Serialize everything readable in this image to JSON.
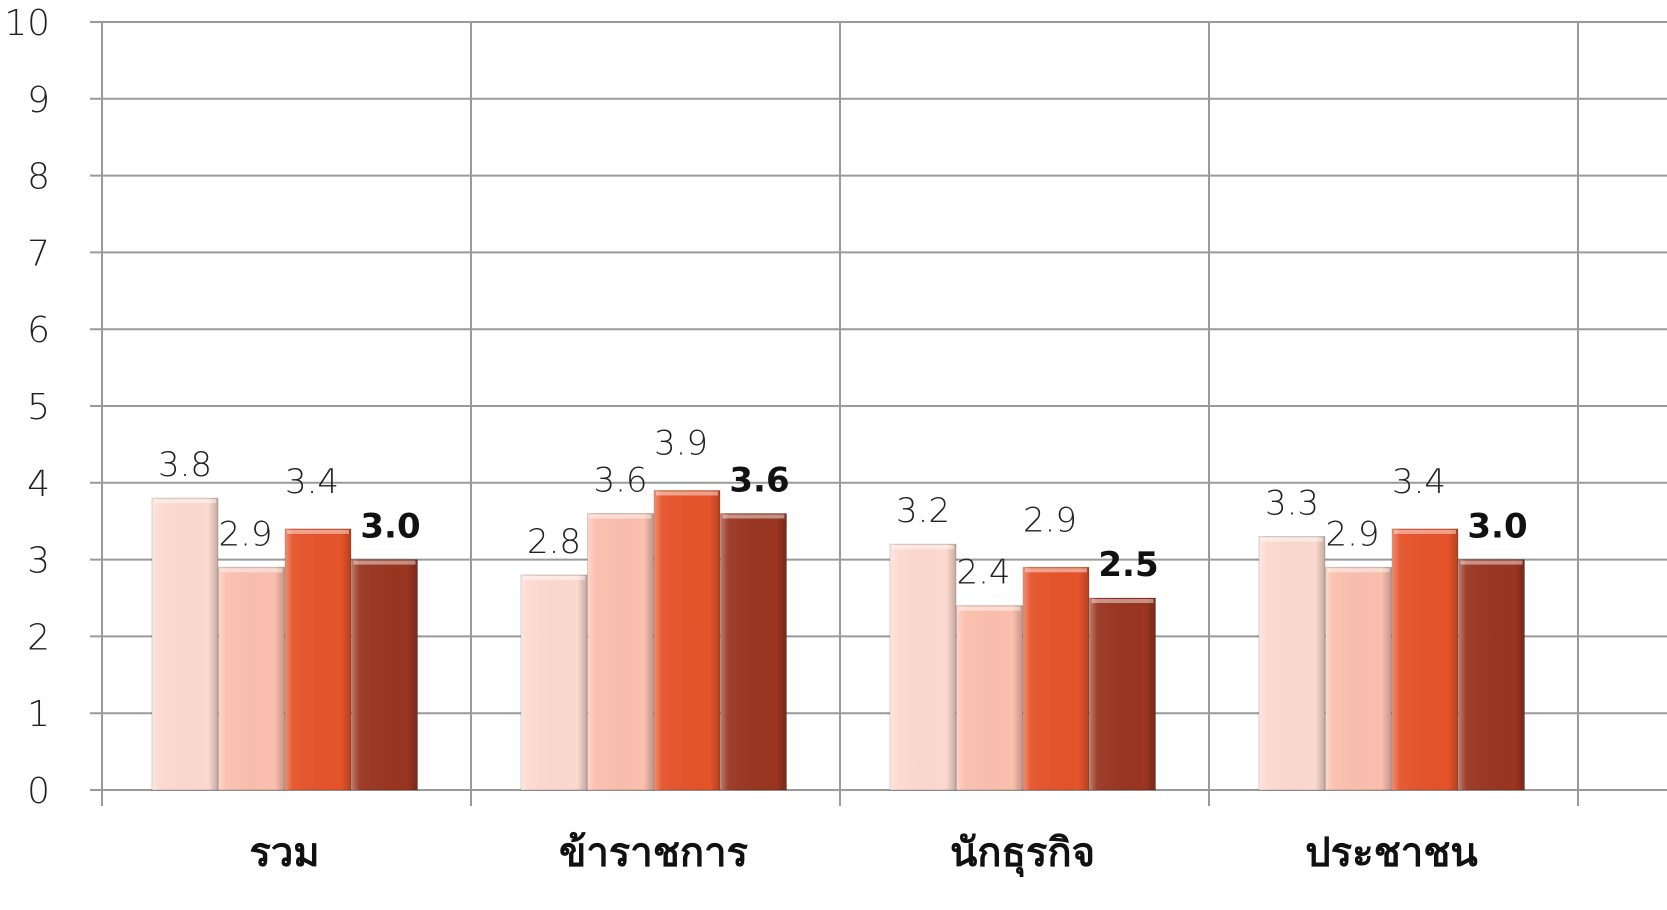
{
  "chart_data": {
    "type": "bar",
    "title": "",
    "xlabel": "",
    "ylabel": "",
    "ylim": [
      0,
      10
    ],
    "yticks": [
      "0",
      "1",
      "2",
      "3",
      "4",
      "5",
      "6",
      "7",
      "8",
      "9",
      "10"
    ],
    "grid": true,
    "legend": "none",
    "categories": [
      "รวม",
      "ข้าราชการ",
      "นักธุรกิจ",
      "ประชาชน"
    ],
    "series": [
      {
        "color": "#fcd9cf",
        "values": [
          3.8,
          2.8,
          3.2,
          3.3
        ],
        "labels": [
          "3.8",
          "2.8",
          "3.2",
          "3.3"
        ],
        "bold_labels": false
      },
      {
        "color": "#fbbfae",
        "values": [
          2.9,
          3.6,
          2.4,
          2.9
        ],
        "labels": [
          "2.9",
          "3.6",
          "2.4",
          "2.9"
        ],
        "bold_labels": false
      },
      {
        "color": "#e5532a",
        "values": [
          3.4,
          3.9,
          2.9,
          3.4
        ],
        "labels": [
          "3.4",
          "3.9",
          "2.9",
          "3.4"
        ],
        "bold_labels": false
      },
      {
        "color": "#993521",
        "values": [
          3.0,
          3.6,
          2.5,
          3.0
        ],
        "labels": [
          "3.0",
          "3.6",
          "2.5",
          "3.0"
        ],
        "bold_labels": true
      }
    ]
  }
}
